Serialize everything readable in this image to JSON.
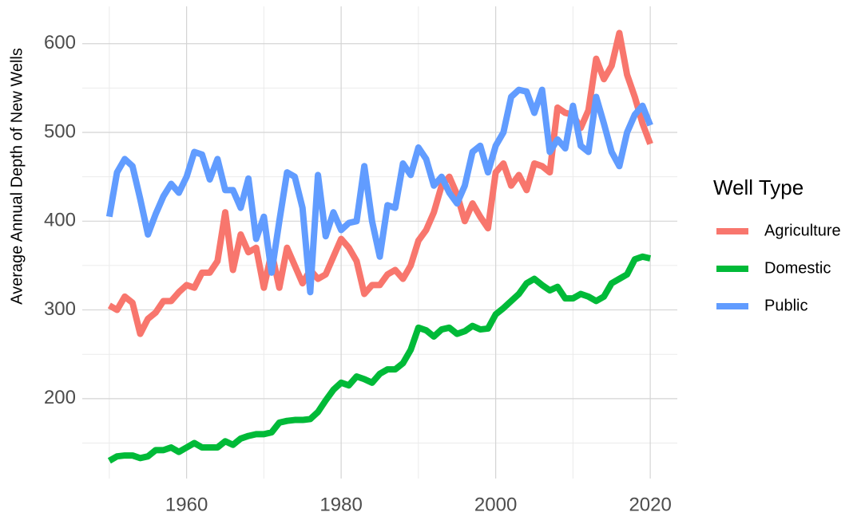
{
  "chart_data": {
    "type": "line",
    "y_label": "Average Annual Depth of New Wells",
    "legend_title": "Well Type",
    "legend_position": "right",
    "grid": true,
    "xlim": [
      1946.5,
      2023.5
    ],
    "xticks": [
      1960,
      1980,
      2000,
      2020
    ],
    "xminor": [
      1950,
      1970,
      1990,
      2010
    ],
    "ylim": [
      110,
      642
    ],
    "yticks": [
      200,
      300,
      400,
      500,
      600
    ],
    "yminor": [
      150,
      250,
      350,
      450,
      550
    ],
    "x": [
      1950,
      1951,
      1952,
      1953,
      1954,
      1955,
      1956,
      1957,
      1958,
      1959,
      1960,
      1961,
      1962,
      1963,
      1964,
      1965,
      1966,
      1967,
      1968,
      1969,
      1970,
      1971,
      1972,
      1973,
      1974,
      1975,
      1976,
      1977,
      1978,
      1979,
      1980,
      1981,
      1982,
      1983,
      1984,
      1985,
      1986,
      1987,
      1988,
      1989,
      1990,
      1991,
      1992,
      1993,
      1994,
      1995,
      1996,
      1997,
      1998,
      1999,
      2000,
      2001,
      2002,
      2003,
      2004,
      2005,
      2006,
      2007,
      2008,
      2009,
      2010,
      2011,
      2012,
      2013,
      2014,
      2015,
      2016,
      2017,
      2018,
      2019,
      2020
    ],
    "series": [
      {
        "name": "Agriculture",
        "color": "#F8766D",
        "values": [
          305,
          300,
          315,
          308,
          273,
          290,
          297,
          310,
          310,
          320,
          328,
          325,
          342,
          342,
          355,
          410,
          345,
          385,
          365,
          370,
          325,
          365,
          325,
          370,
          350,
          330,
          345,
          335,
          340,
          360,
          380,
          370,
          355,
          318,
          328,
          328,
          340,
          345,
          335,
          350,
          378,
          390,
          410,
          440,
          450,
          430,
          400,
          420,
          405,
          392,
          455,
          465,
          440,
          452,
          435,
          465,
          462,
          455,
          528,
          522,
          520,
          505,
          525,
          583,
          560,
          575,
          612,
          565,
          540,
          510,
          487
        ]
      },
      {
        "name": "Domestic",
        "color": "#00BA38",
        "values": [
          130,
          135,
          136,
          136,
          133,
          135,
          142,
          142,
          145,
          140,
          145,
          150,
          145,
          145,
          145,
          152,
          148,
          155,
          158,
          160,
          160,
          162,
          173,
          175,
          176,
          176,
          177,
          185,
          198,
          210,
          218,
          215,
          225,
          222,
          218,
          228,
          233,
          233,
          240,
          255,
          280,
          277,
          270,
          278,
          280,
          273,
          276,
          282,
          278,
          279,
          295,
          302,
          310,
          318,
          330,
          335,
          328,
          322,
          326,
          313,
          313,
          318,
          315,
          310,
          315,
          330,
          335,
          340,
          357,
          360,
          358
        ]
      },
      {
        "name": "Public",
        "color": "#619CFF",
        "values": [
          405,
          455,
          470,
          462,
          425,
          385,
          408,
          428,
          442,
          432,
          450,
          478,
          475,
          447,
          470,
          435,
          435,
          415,
          448,
          380,
          405,
          342,
          400,
          455,
          450,
          415,
          320,
          452,
          383,
          410,
          390,
          398,
          400,
          462,
          400,
          360,
          418,
          415,
          465,
          452,
          483,
          470,
          440,
          450,
          432,
          420,
          440,
          478,
          485,
          455,
          485,
          500,
          540,
          548,
          546,
          522,
          548,
          478,
          492,
          482,
          530,
          485,
          478,
          540,
          510,
          478,
          462,
          500,
          520,
          530,
          508
        ]
      }
    ]
  }
}
